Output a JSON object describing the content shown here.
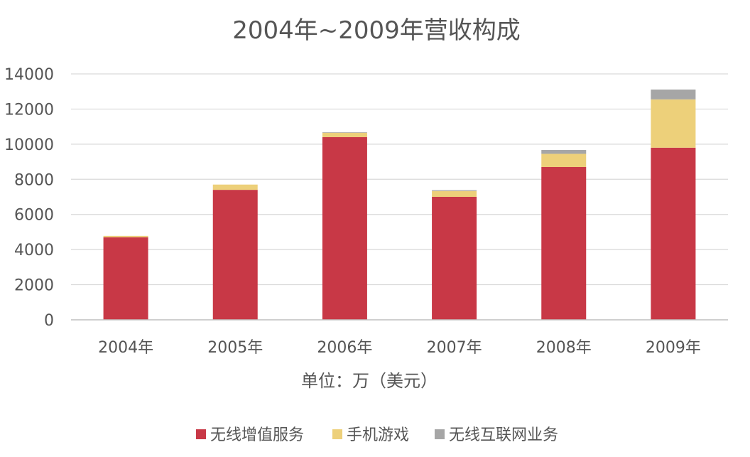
{
  "chart_data": {
    "type": "bar",
    "stacked": true,
    "title": "2004年~2009年营收构成",
    "xlabel": "单位：万（美元）",
    "ylabel": "",
    "ylim": [
      0,
      14000
    ],
    "yticks": [
      0,
      2000,
      4000,
      6000,
      8000,
      10000,
      12000,
      14000
    ],
    "grid": true,
    "legend_position": "bottom",
    "categories": [
      "2004年",
      "2005年",
      "2006年",
      "2007年",
      "2008年",
      "2009年"
    ],
    "series": [
      {
        "name": "无线增值服务",
        "color": "#C83846",
        "values": [
          4700,
          7400,
          10400,
          7000,
          8700,
          9800
        ]
      },
      {
        "name": "手机游戏",
        "color": "#EDD07A",
        "values": [
          80,
          300,
          250,
          330,
          750,
          2750
        ]
      },
      {
        "name": "无线互联网业务",
        "color": "#A6A6A6",
        "values": [
          0,
          0,
          30,
          50,
          220,
          560
        ]
      }
    ]
  }
}
